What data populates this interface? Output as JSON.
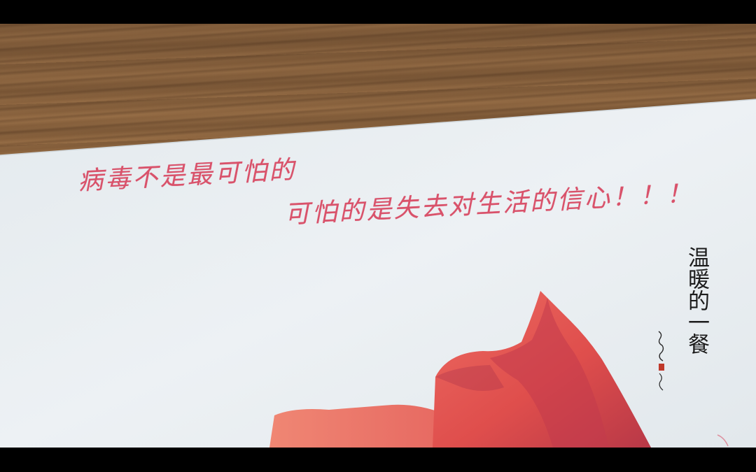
{
  "handwritten_note": {
    "line1": "病毒不是最可怕的",
    "line2": "可怕的是失去对生活的信心！！！"
  },
  "caption": {
    "title": "温暖的一餐"
  },
  "colors": {
    "ink": "#d8455f",
    "paper": "#e9eef2",
    "wood": "#8a6440",
    "flower": "#e2554f"
  },
  "visual_elements": {
    "flower_icon": "red-coloured-pencil-flower-drawing",
    "signature_icon": "artist-signature-with-red-seal"
  }
}
